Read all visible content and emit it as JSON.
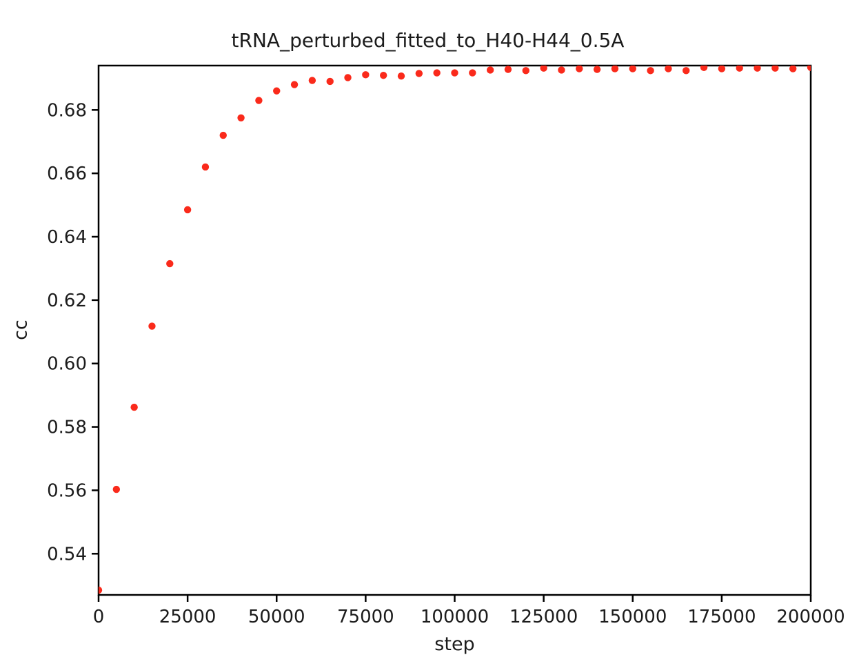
{
  "colors": {
    "marker": "#fa2a1b",
    "axis": "#000000",
    "text": "#1c1c1c",
    "background": "#ffffff"
  },
  "chart_data": {
    "type": "scatter",
    "title": "tRNA_perturbed_fitted_to_H40-H44_0.5A",
    "xlabel": "step",
    "ylabel": "cc",
    "x": [
      0,
      5000,
      10000,
      15000,
      20000,
      25000,
      30000,
      35000,
      40000,
      45000,
      50000,
      55000,
      60000,
      65000,
      70000,
      75000,
      80000,
      85000,
      90000,
      95000,
      100000,
      105000,
      110000,
      115000,
      120000,
      125000,
      130000,
      135000,
      140000,
      145000,
      150000,
      155000,
      160000,
      165000,
      170000,
      175000,
      180000,
      185000,
      190000,
      195000,
      200000
    ],
    "series": [
      {
        "name": "cc",
        "values": [
          0.5285,
          0.5603,
          0.5862,
          0.6118,
          0.6315,
          0.6485,
          0.662,
          0.672,
          0.6775,
          0.683,
          0.686,
          0.688,
          0.6893,
          0.689,
          0.6902,
          0.6911,
          0.6909,
          0.6907,
          0.6915,
          0.6917,
          0.6917,
          0.6917,
          0.6926,
          0.6928,
          0.6924,
          0.6932,
          0.6926,
          0.693,
          0.6928,
          0.693,
          0.693,
          0.6924,
          0.693,
          0.6924,
          0.6934,
          0.693,
          0.6932,
          0.6932,
          0.6932,
          0.693,
          0.6934
        ]
      }
    ],
    "xlim": [
      0,
      200000
    ],
    "ylim": [
      0.527,
      0.694
    ],
    "xticks": [
      0,
      25000,
      50000,
      75000,
      100000,
      125000,
      150000,
      175000,
      200000
    ],
    "yticks": [
      0.54,
      0.56,
      0.58,
      0.6,
      0.62,
      0.64,
      0.66,
      0.68
    ],
    "grid": false,
    "legend_position": "none"
  }
}
